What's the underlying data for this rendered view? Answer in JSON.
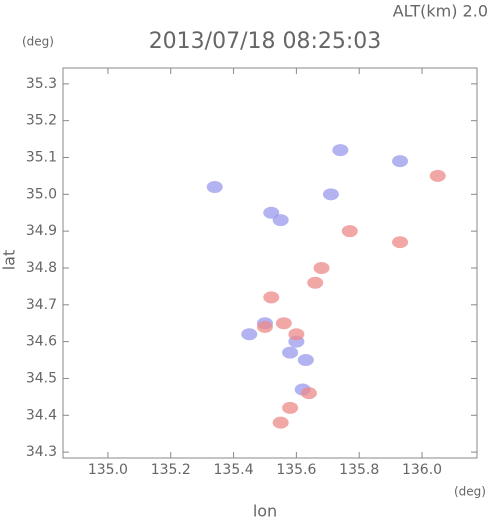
{
  "chart_data": {
    "type": "scatter",
    "header": "ALT(km) 2.0",
    "title": "2013/07/18 08:25:03",
    "y_unit": "(deg)",
    "x_unit": "(deg)",
    "xlabel": "lon",
    "ylabel": "lat",
    "xlim": [
      134.857,
      136.175
    ],
    "ylim": [
      34.284,
      35.343
    ],
    "xticks": [
      {
        "value": 135.0,
        "label": "135.0"
      },
      135.2,
      135.4,
      135.6,
      135.8,
      {
        "value": 136.0,
        "label": "136.0"
      }
    ],
    "yticks": [
      34.3,
      34.4,
      34.5,
      34.6,
      34.7,
      34.8,
      34.9,
      {
        "value": 35.0,
        "label": "35.0"
      },
      35.1,
      35.2,
      35.3
    ],
    "series": [
      {
        "color": "#9a9aee",
        "x": [
          135.34,
          135.52,
          135.55,
          135.71,
          135.93,
          135.74,
          135.63,
          135.58,
          135.5,
          135.62,
          135.45,
          135.6
        ],
        "y": [
          35.02,
          34.95,
          34.93,
          35.0,
          35.09,
          35.12,
          34.55,
          34.57,
          34.65,
          34.47,
          34.62,
          34.6
        ]
      },
      {
        "color": "#ee8a8a",
        "x": [
          135.68,
          135.93,
          136.05,
          135.5,
          135.56,
          135.55,
          135.52,
          135.58,
          135.77,
          135.66,
          135.6,
          135.64
        ],
        "y": [
          34.8,
          34.87,
          35.05,
          34.64,
          34.65,
          34.38,
          34.72,
          34.42,
          34.9,
          34.76,
          34.62,
          34.46
        ]
      }
    ]
  }
}
